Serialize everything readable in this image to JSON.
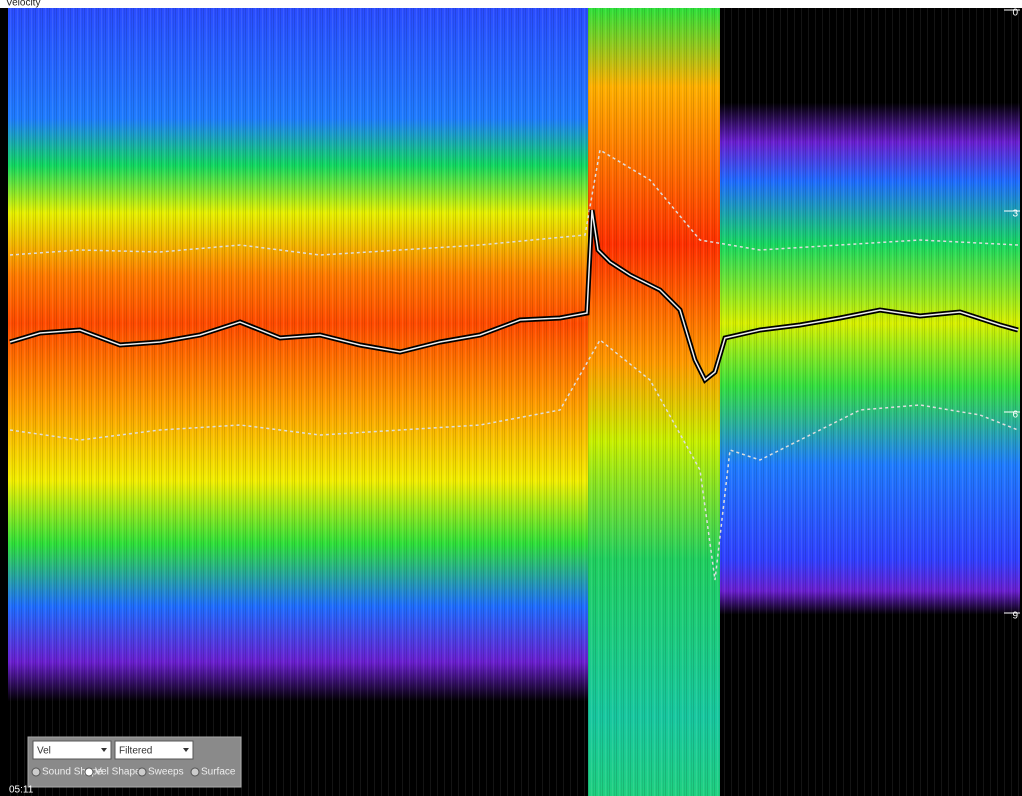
{
  "header": {
    "title": "Velocity"
  },
  "depth_axis": {
    "labels": [
      "0",
      "3",
      "6",
      "9"
    ]
  },
  "time_label": "05:11",
  "controls": {
    "dropdowns": [
      "Vel",
      "Filtered"
    ],
    "options": [
      "Sound Shape",
      "Vel Shape",
      "Sweeps",
      "Surface"
    ]
  }
}
